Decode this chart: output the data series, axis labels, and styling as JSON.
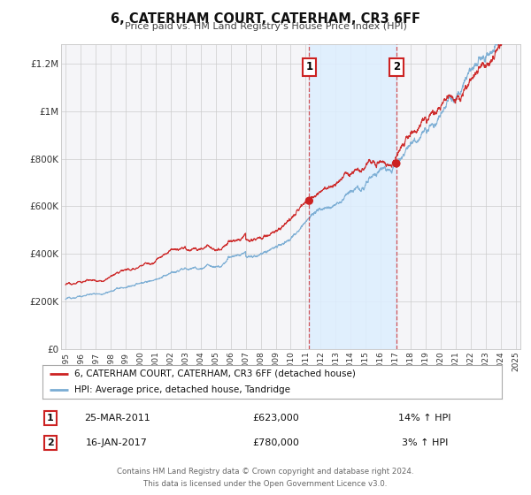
{
  "title": "6, CATERHAM COURT, CATERHAM, CR3 6FF",
  "subtitle": "Price paid vs. HM Land Registry's House Price Index (HPI)",
  "red_label": "6, CATERHAM COURT, CATERHAM, CR3 6FF (detached house)",
  "blue_label": "HPI: Average price, detached house, Tandridge",
  "annotation1_date": "25-MAR-2011",
  "annotation1_price": "£623,000",
  "annotation1_pct": "14% ↑ HPI",
  "annotation2_date": "16-JAN-2017",
  "annotation2_price": "£780,000",
  "annotation2_pct": "3% ↑ HPI",
  "footer1": "Contains HM Land Registry data © Crown copyright and database right 2024.",
  "footer2": "This data is licensed under the Open Government Licence v3.0.",
  "year_start": 1995,
  "year_end": 2025,
  "vline1_year": 2011.23,
  "vline2_year": 2017.04,
  "shade_color": "#ddeeff",
  "red_color": "#cc2222",
  "blue_color": "#7aadd4",
  "grid_color": "#cccccc",
  "bg_color": "#f5f5f8",
  "marker1_value_red": 623000,
  "marker2_value_red": 780000,
  "marker1_year": 2011.23,
  "marker2_year": 2017.04,
  "ylim_max": 1280000,
  "yticks": [
    0,
    200000,
    400000,
    600000,
    800000,
    1000000,
    1200000
  ],
  "ylabels": [
    "£0",
    "£200K",
    "£400K",
    "£600K",
    "£800K",
    "£1M",
    "£1.2M"
  ]
}
